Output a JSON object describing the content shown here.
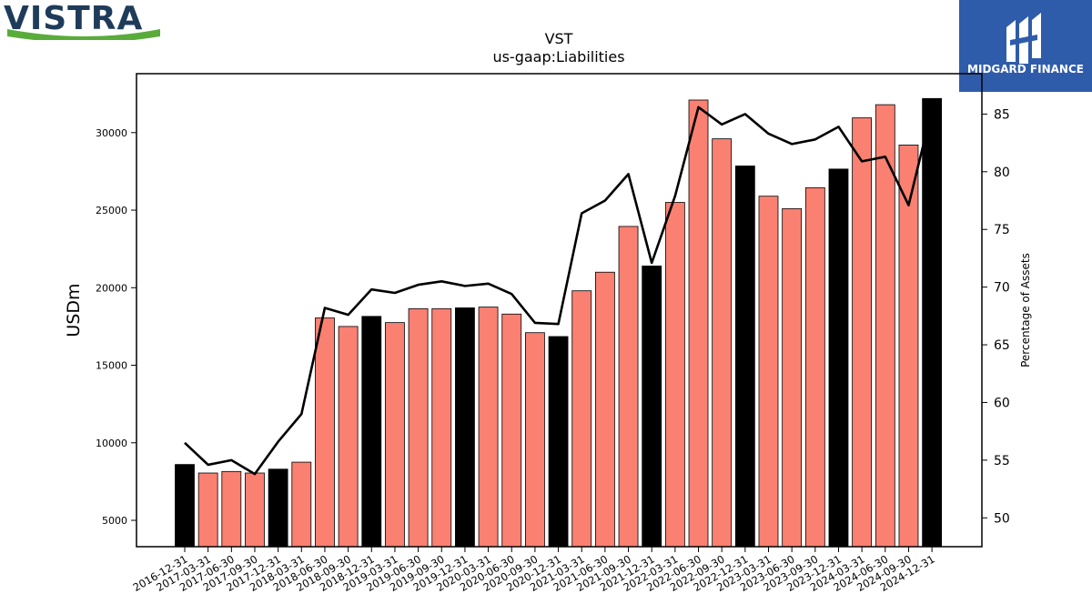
{
  "brand": {
    "logo_text": "VISTRA"
  },
  "partner": {
    "logo_text": "MIDGARD FINANCE"
  },
  "colors": {
    "brand_navy": "#1f3b5a",
    "brand_green": "#5aac3a",
    "partner_blue": "#2f5caa",
    "bar_quarter": "#fa8072",
    "bar_year_end": "#000000",
    "line": "#000000"
  },
  "chart_data": {
    "type": "bar",
    "title": "VST",
    "subtitle": "us-gaap:Liabilities",
    "ylabel": "USDm",
    "y2label": "Percentage of Assets",
    "ylim": [
      3300,
      33800
    ],
    "y2lim": [
      47.5,
      88.5
    ],
    "yticks": [
      5000,
      10000,
      15000,
      20000,
      25000,
      30000
    ],
    "y2ticks": [
      50,
      55,
      60,
      65,
      70,
      75,
      80,
      85
    ],
    "grid": false,
    "categories": [
      "2016-12-31",
      "2017-03-31",
      "2017-06-30",
      "2017-09-30",
      "2017-12-31",
      "2018-03-31",
      "2018-06-30",
      "2018-09-30",
      "2018-12-31",
      "2019-03-31",
      "2019-06-30",
      "2019-09-30",
      "2019-12-31",
      "2020-03-31",
      "2020-06-30",
      "2020-09-30",
      "2020-12-31",
      "2021-03-31",
      "2021-06-30",
      "2021-09-30",
      "2021-12-31",
      "2022-03-31",
      "2022-06-30",
      "2022-09-30",
      "2022-12-31",
      "2023-03-31",
      "2023-06-30",
      "2023-09-30",
      "2023-12-31",
      "2024-03-31",
      "2024-06-30",
      "2024-09-30",
      "2024-12-31"
    ],
    "series": [
      {
        "type": "bar",
        "values": [
          8600,
          8050,
          8150,
          8050,
          8300,
          8750,
          18050,
          17500,
          18150,
          17750,
          18650,
          18650,
          18700,
          18750,
          18300,
          17100,
          16850,
          19800,
          21000,
          23950,
          21400,
          25500,
          32100,
          29600,
          27850,
          25900,
          25100,
          26450,
          27650,
          30950,
          31800,
          29200,
          32200
        ]
      },
      {
        "type": "line",
        "axis": "right",
        "values": [
          56.5,
          54.6,
          55.0,
          53.8,
          56.6,
          59.0,
          68.2,
          67.6,
          69.8,
          69.5,
          70.2,
          70.5,
          70.1,
          70.3,
          69.4,
          66.9,
          66.8,
          76.4,
          77.5,
          79.8,
          72.1,
          77.9,
          85.6,
          84.1,
          85.0,
          83.3,
          82.4,
          82.8,
          83.9,
          80.9,
          81.3,
          77.1,
          85.4
        ]
      }
    ]
  }
}
